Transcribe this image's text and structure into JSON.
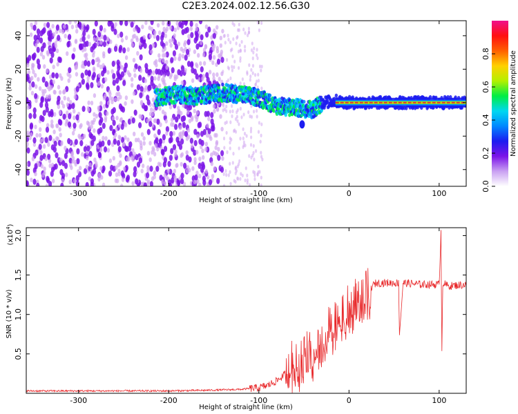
{
  "title": "C2E3.2024.002.12.56.G30",
  "colors": {
    "signal_line": "#e8282a",
    "scatter_low": "#d2a7f0",
    "scatter_mid": "#7a12e6",
    "band_core": "#e0283c",
    "frame": "#000000"
  },
  "chart_data": [
    {
      "type": "heatmap",
      "xlabel": "Height of straight line (km)",
      "ylabel": "Frequency (Hz)",
      "xlim": [
        -358,
        130
      ],
      "ylim": [
        -50,
        49
      ],
      "xticks": [
        -300,
        -200,
        -100,
        0,
        100
      ],
      "yticks": [
        -40,
        -20,
        0,
        20,
        40
      ],
      "xtick_labels": [
        "-300",
        "-200",
        "-100",
        "0",
        "100"
      ],
      "ytick_labels": [
        "-40",
        "-20",
        "0",
        "20",
        "40"
      ],
      "colorbar": {
        "label": "Normalized spectral amplitude",
        "range": [
          0,
          1
        ],
        "ticks": [
          0.0,
          0.2,
          0.4,
          0.6,
          0.8
        ],
        "tick_labels": [
          "0.0",
          "0.2",
          "0.4",
          "0.6",
          "0.8"
        ],
        "colormap": [
          "#ffffff",
          "#c9a0f2",
          "#7b14e8",
          "#1c1cf0",
          "#0088ff",
          "#00d8f0",
          "#00ee44",
          "#b4f000",
          "#ffd000",
          "#ff6000",
          "#ff1010",
          "#f0108c"
        ]
      },
      "features": {
        "noise_region_x": [
          -358,
          -140
        ],
        "trace_points": [
          [
            -215,
            3
          ],
          [
            -190,
            5
          ],
          [
            -170,
            4
          ],
          [
            -140,
            6
          ],
          [
            -120,
            5
          ],
          [
            -100,
            3
          ],
          [
            -80,
            -2
          ],
          [
            -60,
            -3
          ],
          [
            -40,
            -4
          ],
          [
            -30,
            0
          ],
          [
            -15,
            1
          ],
          [
            0,
            0
          ],
          [
            60,
            0
          ],
          [
            100,
            0
          ],
          [
            130,
            0
          ]
        ],
        "spike": {
          "x": -52,
          "y": -13
        }
      }
    },
    {
      "type": "line",
      "xlabel": "Height of straight line (km)",
      "ylabel": "SNR (10 * v/v)",
      "scale_label": "(x10",
      "scale_exponent": "4",
      "xlim": [
        -358,
        130
      ],
      "ylim": [
        0,
        2.1
      ],
      "xticks": [
        -300,
        -200,
        -100,
        0,
        100
      ],
      "yticks": [
        0.5,
        1.0,
        1.5,
        2.0
      ],
      "xtick_labels": [
        "-300",
        "-200",
        "-100",
        "0",
        "100"
      ],
      "ytick_labels": [
        "0.5",
        "1.0",
        "1.5",
        "2.0"
      ],
      "series": [
        {
          "x": [
            -358,
            -300,
            -250,
            -200,
            -150,
            -120,
            -100,
            -90,
            -80,
            -70,
            -65,
            -55,
            -50,
            -40,
            -35,
            -30,
            -25,
            -20,
            -15,
            -10,
            -5,
            0,
            10,
            20,
            30,
            50,
            55,
            56,
            60,
            80,
            100,
            102,
            103,
            104,
            110,
            130
          ],
          "y": [
            0.03,
            0.03,
            0.03,
            0.03,
            0.04,
            0.05,
            0.07,
            0.1,
            0.16,
            0.25,
            0.4,
            0.38,
            0.5,
            0.55,
            0.6,
            0.72,
            0.8,
            0.85,
            0.92,
            1.0,
            1.05,
            1.12,
            1.2,
            1.3,
            1.4,
            1.4,
            1.4,
            0.75,
            1.4,
            1.38,
            1.38,
            2.05,
            0.55,
            1.4,
            1.36,
            1.38
          ]
        }
      ]
    }
  ]
}
